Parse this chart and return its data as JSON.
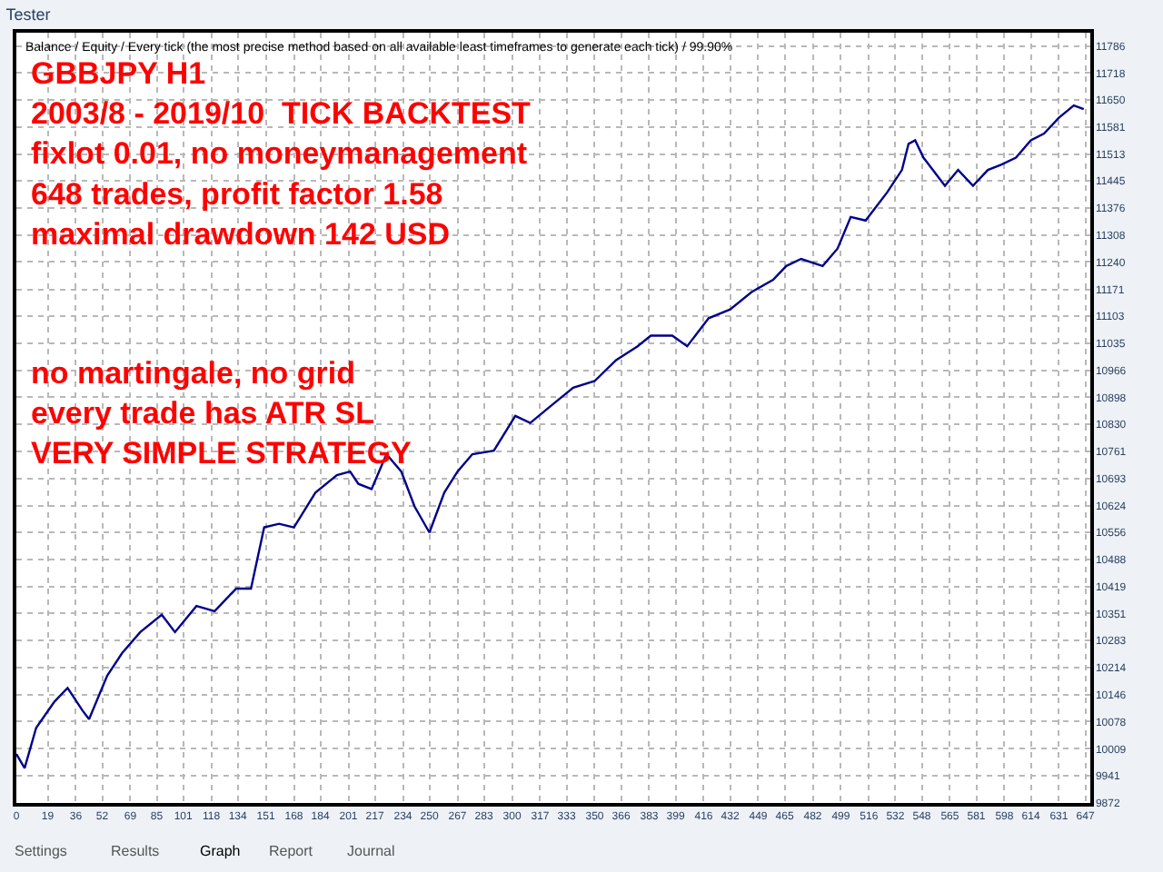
{
  "chart_data": {
    "type": "line",
    "title": "Tester",
    "subtitle": "Balance / Equity / Every tick (the most precise method based on all available least timeframes to generate each tick) / 99.90%",
    "annotations": [
      "GBBJPY H1\n2003/8 - 2019/10  TICK BACKTEST\nfixlot 0.01, no moneymanagement\n648 trades, profit factor 1.58\nmaximal drawdown 142 USD",
      "no martingale, no grid\nevery trade has ATR SL\nVERY SIMPLE STRATEGY",
      "Settings",
      "Results",
      "Graph",
      "Report",
      "Journal"
    ],
    "series": [
      {
        "color": "#00008b",
        "x": [
          0,
          5,
          12,
          23,
          31,
          40,
          44,
          55,
          64,
          75,
          88,
          96,
          109,
          120,
          133,
          142,
          150,
          159,
          168,
          181,
          194,
          202,
          207,
          215,
          224,
          233,
          241,
          250,
          259,
          267,
          276,
          289,
          302,
          311,
          324,
          337,
          350,
          363,
          376,
          384,
          397,
          406,
          419,
          432,
          445,
          458,
          466,
          475,
          488,
          497,
          505,
          514,
          527,
          536,
          540,
          544,
          549,
          562,
          570,
          579,
          588,
          596,
          605,
          614,
          622,
          631,
          640,
          646
        ],
        "values": [
          9996,
          9960,
          10062,
          10128,
          10163,
          10106,
          10084,
          10194,
          10251,
          10304,
          10348,
          10304,
          10370,
          10357,
          10414,
          10414,
          10569,
          10578,
          10569,
          10657,
          10701,
          10710,
          10679,
          10666,
          10754,
          10710,
          10622,
          10556,
          10657,
          10710,
          10754,
          10763,
          10851,
          10833,
          10878,
          10922,
          10939,
          10992,
          11027,
          11054,
          11054,
          11027,
          11098,
          11120,
          11164,
          11195,
          11230,
          11248,
          11230,
          11274,
          11354,
          11345,
          11416,
          11473,
          11539,
          11548,
          11504,
          11433,
          11473,
          11433,
          11473,
          11486,
          11504,
          11548,
          11565,
          11605,
          11636,
          11627
        ]
      }
    ],
    "xlim": [
      0,
      650
    ],
    "xticks": [
      0,
      19,
      36,
      52,
      69,
      85,
      101,
      118,
      134,
      151,
      168,
      184,
      201,
      217,
      234,
      250,
      267,
      283,
      300,
      317,
      333,
      350,
      366,
      383,
      399,
      416,
      432,
      449,
      465,
      482,
      499,
      516,
      532,
      548,
      565,
      581,
      598,
      614,
      631,
      647
    ],
    "ylim": [
      9872,
      11820
    ],
    "yticks": [
      9872,
      9941,
      10009,
      10078,
      10146,
      10214,
      10283,
      10351,
      10419,
      10488,
      10556,
      10624,
      10693,
      10761,
      10830,
      10898,
      10966,
      11035,
      11103,
      11171,
      11240,
      11308,
      11376,
      11445,
      11513,
      11581,
      11650,
      11718,
      11786
    ],
    "grid": true,
    "marker": "none",
    "line_style": "solid"
  }
}
